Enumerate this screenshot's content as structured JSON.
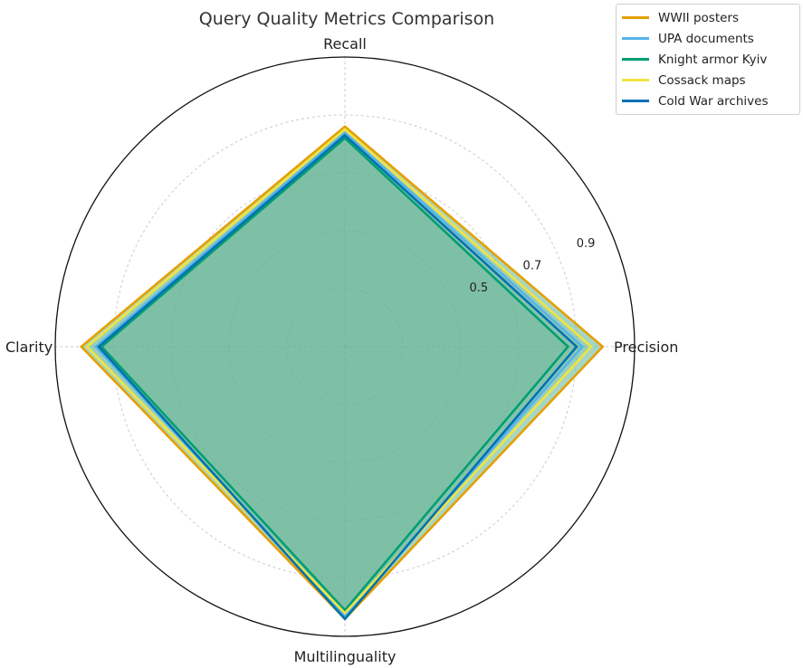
{
  "chart_data": {
    "type": "radar",
    "title": "Query Quality Metrics Comparison",
    "axes": [
      "Recall",
      "Precision",
      "Multilinguality",
      "Clarity"
    ],
    "radial_ticks": [
      0.5,
      0.7,
      0.9
    ],
    "rlim": [
      0,
      1.0
    ],
    "grid": true,
    "legend_position": "top-right",
    "series": [
      {
        "name": "WWII posters",
        "color": "#E69F00",
        "values": [
          0.76,
          0.89,
          0.94,
          0.91
        ]
      },
      {
        "name": "UPA documents",
        "color": "#56B4E9",
        "values": [
          0.74,
          0.82,
          0.93,
          0.86
        ]
      },
      {
        "name": "Knight armor Kyiv",
        "color": "#009E73",
        "values": [
          0.72,
          0.77,
          0.91,
          0.84
        ]
      },
      {
        "name": "Cossack maps",
        "color": "#F0E442",
        "values": [
          0.75,
          0.85,
          0.92,
          0.89
        ]
      },
      {
        "name": "Cold War archives",
        "color": "#0072B2",
        "values": [
          0.73,
          0.8,
          0.94,
          0.85
        ]
      }
    ],
    "fill_color": "#5DB491"
  }
}
